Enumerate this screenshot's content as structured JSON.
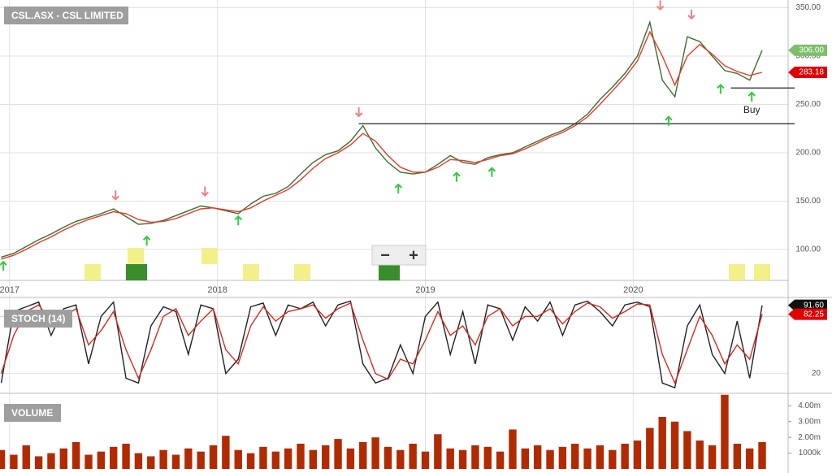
{
  "chart_data": [
    {
      "type": "line",
      "title": "CSL.ASX - CSL LIMITED",
      "x": [
        2016.96,
        2017.02,
        2017.08,
        2017.14,
        2017.2,
        2017.26,
        2017.32,
        2017.38,
        2017.44,
        2017.5,
        2017.56,
        2017.62,
        2017.68,
        2017.74,
        2017.8,
        2017.86,
        2017.92,
        2017.98,
        2018.04,
        2018.1,
        2018.16,
        2018.22,
        2018.28,
        2018.34,
        2018.4,
        2018.46,
        2018.52,
        2018.58,
        2018.64,
        2018.7,
        2018.76,
        2018.82,
        2018.88,
        2018.94,
        2019.0,
        2019.06,
        2019.12,
        2019.18,
        2019.24,
        2019.3,
        2019.36,
        2019.42,
        2019.48,
        2019.54,
        2019.6,
        2019.66,
        2019.72,
        2019.78,
        2019.84,
        2019.9,
        2019.96,
        2020.02,
        2020.08,
        2020.14,
        2020.2,
        2020.26,
        2020.32,
        2020.38,
        2020.44,
        2020.5,
        2020.56,
        2020.62
      ],
      "series": [
        {
          "color": "#3b6e2f",
          "values": [
            92,
            96,
            103,
            110,
            116,
            123,
            129,
            133,
            137,
            142,
            134,
            126,
            127,
            130,
            135,
            140,
            145,
            143,
            140,
            137,
            147,
            155,
            158,
            165,
            178,
            190,
            198,
            202,
            212,
            228,
            205,
            190,
            180,
            178,
            180,
            188,
            197,
            190,
            188,
            195,
            198,
            200,
            206,
            212,
            218,
            223,
            230,
            240,
            255,
            268,
            282,
            300,
            335,
            275,
            258,
            320,
            315,
            300,
            285,
            282,
            275,
            306
          ]
        },
        {
          "color": "#e8392b",
          "values": [
            90,
            94,
            100,
            107,
            113,
            120,
            126,
            131,
            135,
            139,
            137,
            131,
            128,
            129,
            132,
            137,
            142,
            143,
            141,
            139,
            143,
            150,
            156,
            162,
            172,
            184,
            194,
            200,
            208,
            220,
            212,
            197,
            185,
            180,
            180,
            185,
            193,
            192,
            190,
            193,
            197,
            199,
            204,
            210,
            216,
            221,
            228,
            237,
            250,
            264,
            278,
            295,
            325,
            300,
            270,
            300,
            312,
            302,
            290,
            284,
            280,
            283.18
          ]
        }
      ],
      "xlim": [
        2016.954,
        2020.745
      ],
      "xticks": [
        2017,
        2018,
        2019,
        2020
      ],
      "ylim": [
        68,
        358
      ],
      "yticks": [
        {
          "value": 100,
          "label": "100.00"
        },
        {
          "value": 150,
          "label": "150.00"
        },
        {
          "value": 200,
          "label": "200.00"
        },
        {
          "value": 250,
          "label": "250.00"
        },
        {
          "value": 300,
          "label": "300.00"
        },
        {
          "value": 350,
          "label": "350.00"
        }
      ],
      "grid": true,
      "hlines": [
        {
          "y": 230,
          "x_from": 2018.68
        },
        {
          "y": 267,
          "x_from": 2020.47
        }
      ],
      "signals": [
        {
          "x": 2017.51,
          "y": 156,
          "dir": "down"
        },
        {
          "x": 2017.94,
          "y": 160,
          "dir": "down"
        },
        {
          "x": 2018.68,
          "y": 242,
          "dir": "down"
        },
        {
          "x": 2020.13,
          "y": 352.5,
          "dir": "down"
        },
        {
          "x": 2020.28,
          "y": 343,
          "dir": "down"
        },
        {
          "x": 2016.97,
          "y": 83,
          "dir": "up"
        },
        {
          "x": 2017.66,
          "y": 109,
          "dir": "up"
        },
        {
          "x": 2018.1,
          "y": 130,
          "dir": "up"
        },
        {
          "x": 2018.87,
          "y": 163,
          "dir": "up"
        },
        {
          "x": 2019.15,
          "y": 175,
          "dir": "up"
        },
        {
          "x": 2019.32,
          "y": 180,
          "dir": "up"
        },
        {
          "x": 2020.17,
          "y": 233,
          "dir": "up"
        },
        {
          "x": 2020.42,
          "y": 266,
          "dir": "up"
        },
        {
          "x": 2020.57,
          "y": 258,
          "dir": "up"
        }
      ],
      "annotations": [
        {
          "text": "Buy",
          "x": 2020.57,
          "y": 244
        }
      ],
      "markers": [
        {
          "value": 306,
          "label": "306.00",
          "color": "#7cbf6a"
        },
        {
          "value": 283.18,
          "label": "283.18",
          "color": "#e00000"
        }
      ]
    },
    {
      "type": "line",
      "title": "STOCH (14)",
      "x": [
        2016.96,
        2017.02,
        2017.08,
        2017.14,
        2017.2,
        2017.26,
        2017.32,
        2017.38,
        2017.44,
        2017.5,
        2017.56,
        2017.62,
        2017.68,
        2017.74,
        2017.8,
        2017.86,
        2017.92,
        2017.98,
        2018.04,
        2018.1,
        2018.16,
        2018.22,
        2018.28,
        2018.34,
        2018.4,
        2018.46,
        2018.52,
        2018.58,
        2018.64,
        2018.7,
        2018.76,
        2018.82,
        2018.88,
        2018.94,
        2019.0,
        2019.06,
        2019.12,
        2019.18,
        2019.24,
        2019.3,
        2019.36,
        2019.42,
        2019.48,
        2019.54,
        2019.6,
        2019.66,
        2019.72,
        2019.78,
        2019.84,
        2019.9,
        2019.96,
        2020.02,
        2020.08,
        2020.14,
        2020.2,
        2020.26,
        2020.32,
        2020.38,
        2020.44,
        2020.5,
        2020.56,
        2020.62
      ],
      "series": [
        {
          "color": "#222222",
          "values": [
            10,
            85,
            90,
            95,
            60,
            88,
            92,
            30,
            80,
            95,
            15,
            10,
            70,
            90,
            85,
            40,
            92,
            88,
            20,
            35,
            90,
            94,
            60,
            92,
            88,
            95,
            70,
            92,
            96,
            30,
            10,
            15,
            50,
            20,
            80,
            95,
            40,
            85,
            30,
            92,
            88,
            55,
            90,
            75,
            95,
            60,
            92,
            96,
            85,
            70,
            92,
            95,
            90,
            10,
            5,
            70,
            92,
            40,
            20,
            75,
            15,
            91.6
          ]
        },
        {
          "color": "#d62a1e",
          "values": [
            20,
            60,
            85,
            92,
            75,
            80,
            88,
            50,
            65,
            85,
            45,
            15,
            45,
            80,
            88,
            60,
            75,
            88,
            45,
            30,
            70,
            90,
            75,
            85,
            88,
            92,
            78,
            88,
            94,
            55,
            20,
            14,
            35,
            30,
            55,
            85,
            60,
            70,
            50,
            80,
            88,
            70,
            80,
            80,
            88,
            72,
            85,
            94,
            90,
            78,
            85,
            93,
            92,
            40,
            10,
            45,
            80,
            60,
            30,
            50,
            35,
            82.25
          ]
        }
      ],
      "xlim": [
        2016.954,
        2020.745
      ],
      "ylim": [
        0,
        99
      ],
      "yticks": [
        20
      ],
      "levels": [
        80
      ],
      "grid": true,
      "markers": [
        {
          "value": 91.6,
          "label": "91.60",
          "color": "#111111"
        },
        {
          "value": 82.25,
          "label": "82.25",
          "color": "#e00000"
        }
      ]
    },
    {
      "type": "bar",
      "title": "VOLUME",
      "x": [
        2016.96,
        2017.02,
        2017.08,
        2017.14,
        2017.2,
        2017.26,
        2017.32,
        2017.38,
        2017.44,
        2017.5,
        2017.56,
        2017.62,
        2017.68,
        2017.74,
        2017.8,
        2017.86,
        2017.92,
        2017.98,
        2018.04,
        2018.1,
        2018.16,
        2018.22,
        2018.28,
        2018.34,
        2018.4,
        2018.46,
        2018.52,
        2018.58,
        2018.64,
        2018.7,
        2018.76,
        2018.82,
        2018.88,
        2018.94,
        2019.0,
        2019.06,
        2019.12,
        2019.18,
        2019.24,
        2019.3,
        2019.36,
        2019.42,
        2019.48,
        2019.54,
        2019.6,
        2019.66,
        2019.72,
        2019.78,
        2019.84,
        2019.9,
        2019.96,
        2020.02,
        2020.08,
        2020.14,
        2020.2,
        2020.26,
        2020.32,
        2020.38,
        2020.44,
        2020.5,
        2020.56,
        2020.62
      ],
      "values": [
        1200000,
        900000,
        1500000,
        800000,
        1000000,
        1300000,
        1700000,
        900000,
        1100000,
        1400000,
        1600000,
        1000000,
        800000,
        1200000,
        900000,
        1300000,
        1100000,
        1500000,
        2100000,
        1200000,
        1000000,
        1400000,
        1100000,
        1300000,
        1600000,
        1200000,
        1500000,
        1900000,
        1300000,
        1700000,
        2000000,
        1400000,
        1200000,
        1600000,
        1100000,
        2200000,
        1300000,
        1200000,
        1500000,
        1400000,
        1100000,
        2500000,
        1300000,
        1500000,
        1200000,
        1400000,
        1600000,
        1300000,
        1500000,
        1200000,
        1600000,
        1800000,
        2600000,
        3300000,
        3000000,
        2400000,
        1800000,
        1500000,
        4700000,
        1600000,
        1300000,
        1700000
      ],
      "color": "#b22a00",
      "xlim": [
        2016.954,
        2020.745
      ],
      "ylim": [
        0,
        4740000
      ],
      "yticks": [
        {
          "value": 1000000,
          "label": "1000k"
        },
        {
          "value": 2000000,
          "label": "2.00m"
        },
        {
          "value": 3000000,
          "label": "3.00m"
        },
        {
          "value": 4000000,
          "label": "4.00m"
        }
      ]
    }
  ],
  "toolbar": {
    "zoom_out": "−",
    "zoom_in": "+"
  }
}
